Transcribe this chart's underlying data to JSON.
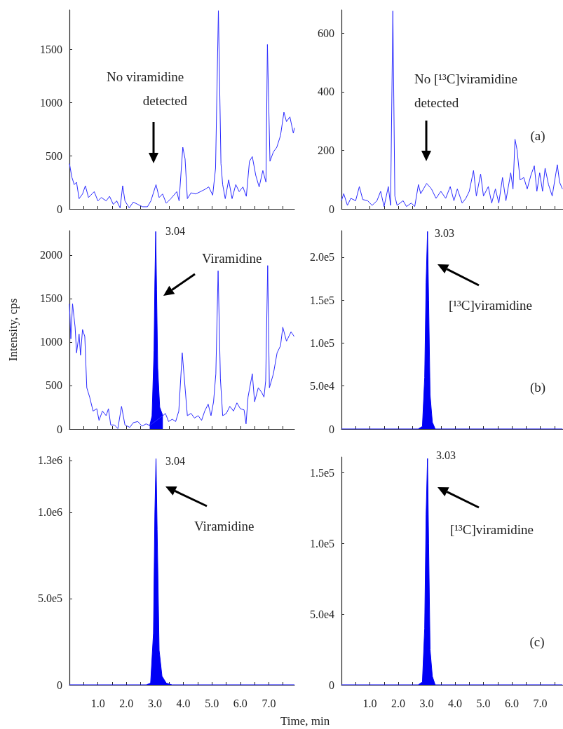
{
  "chart_data": [
    {
      "type": "line",
      "xlim": [
        0,
        7.9
      ],
      "ylim": [
        0,
        1870
      ],
      "tick_labels": "y",
      "grid": false,
      "marker": "none",
      "line_style": "solid",
      "xticks": [
        {
          "value": 0.5,
          "label": null
        },
        {
          "value": 1,
          "label": null
        },
        {
          "value": 1.5,
          "label": null
        },
        {
          "value": 2,
          "label": null
        },
        {
          "value": 2.5,
          "label": null
        },
        {
          "value": 3,
          "label": null
        },
        {
          "value": 3.5,
          "label": null
        },
        {
          "value": 4,
          "label": null
        },
        {
          "value": 4.5,
          "label": null
        },
        {
          "value": 5,
          "label": null
        },
        {
          "value": 5.5,
          "label": null
        },
        {
          "value": 6,
          "label": null
        },
        {
          "value": 6.5,
          "label": null
        },
        {
          "value": 7,
          "label": null
        },
        {
          "value": 7.5,
          "label": null
        }
      ],
      "yticks": [
        0,
        500,
        1000,
        1500
      ],
      "annotations": [
        "No viramidine detected"
      ],
      "series": [
        {
          "color": "#2b2bff",
          "x": [
            0,
            0.09,
            0.17,
            0.25,
            0.34,
            0.46,
            0.56,
            0.67,
            0.87,
            1.0,
            1.12,
            1.29,
            1.41,
            1.54,
            1.66,
            1.78,
            1.87,
            1.95,
            2.1,
            2.24,
            2.4,
            2.57,
            2.74,
            2.86,
            3.04,
            3.15,
            3.27,
            3.4,
            3.56,
            3.77,
            3.85,
            3.98,
            4.06,
            4.14,
            4.27,
            4.43,
            4.6,
            4.76,
            4.89,
            5.03,
            5.13,
            5.23,
            5.32,
            5.38,
            5.47,
            5.59,
            5.71,
            5.84,
            5.96,
            6.09,
            6.21,
            6.32,
            6.42,
            6.54,
            6.66,
            6.79,
            6.9,
            6.95,
            7.04,
            7.16,
            7.28,
            7.41,
            7.53,
            7.62,
            7.74,
            7.86,
            7.9
          ],
          "values": [
            425,
            294,
            228,
            250,
            96,
            140,
            217,
            107,
            162,
            75,
            107,
            75,
            118,
            42,
            75,
            9,
            217,
            75,
            9,
            64,
            42,
            20,
            20,
            75,
            228,
            107,
            140,
            53,
            96,
            162,
            75,
            579,
            469,
            96,
            151,
            140,
            162,
            184,
            206,
            129,
            382,
            1862,
            425,
            228,
            96,
            272,
            96,
            228,
            162,
            206,
            118,
            447,
            491,
            316,
            206,
            360,
            250,
            1544,
            447,
            535,
            579,
            689,
            908,
            820,
            864,
            711,
            760
          ]
        }
      ]
    },
    {
      "type": "line",
      "xlim": [
        0,
        7.8
      ],
      "ylim": [
        0,
        680
      ],
      "tick_labels": "y",
      "grid": false,
      "marker": "none",
      "line_style": "solid",
      "xticks": [
        {
          "value": 0.5,
          "label": null
        },
        {
          "value": 1,
          "label": null
        },
        {
          "value": 1.5,
          "label": null
        },
        {
          "value": 2,
          "label": null
        },
        {
          "value": 2.5,
          "label": null
        },
        {
          "value": 3,
          "label": null
        },
        {
          "value": 3.5,
          "label": null
        },
        {
          "value": 4,
          "label": null
        },
        {
          "value": 4.5,
          "label": null
        },
        {
          "value": 5,
          "label": null
        },
        {
          "value": 5.5,
          "label": null
        },
        {
          "value": 6,
          "label": null
        },
        {
          "value": 6.5,
          "label": null
        },
        {
          "value": 7,
          "label": null
        },
        {
          "value": 7.5,
          "label": null
        }
      ],
      "yticks": [
        0,
        200,
        400,
        600
      ],
      "annotations": [
        "No [¹³C]viramidine detected",
        "(a)"
      ],
      "series": [
        {
          "color": "#2b2bff",
          "x": [
            0,
            0.08,
            0.21,
            0.33,
            0.5,
            0.63,
            0.75,
            0.92,
            1.08,
            1.25,
            1.38,
            1.5,
            1.65,
            1.73,
            1.81,
            1.88,
            1.96,
            2.17,
            2.29,
            2.46,
            2.58,
            2.71,
            2.79,
            3.0,
            3.17,
            3.33,
            3.5,
            3.67,
            3.83,
            3.96,
            4.08,
            4.25,
            4.38,
            4.5,
            4.65,
            4.75,
            4.9,
            5.0,
            5.17,
            5.29,
            5.42,
            5.54,
            5.67,
            5.79,
            5.96,
            6.04,
            6.11,
            6.18,
            6.29,
            6.42,
            6.54,
            6.67,
            6.79,
            6.88,
            6.98,
            7.08,
            7.17,
            7.29,
            7.42,
            7.6,
            7.68,
            7.78
          ],
          "values": [
            28,
            52,
            12,
            36,
            28,
            76,
            32,
            28,
            12,
            28,
            60,
            8,
            76,
            12,
            676,
            44,
            12,
            28,
            8,
            20,
            8,
            83,
            52,
            87,
            68,
            36,
            60,
            36,
            76,
            28,
            68,
            20,
            36,
            60,
            131,
            44,
            119,
            44,
            76,
            20,
            68,
            20,
            107,
            28,
            123,
            68,
            238,
            203,
            99,
            107,
            68,
            115,
            147,
            60,
            123,
            60,
            139,
            83,
            44,
            151,
            91,
            68
          ]
        }
      ]
    },
    {
      "type": "line",
      "xlim": [
        0,
        7.9
      ],
      "ylim": [
        0,
        2280
      ],
      "tick_labels": "y",
      "grid": false,
      "marker": "none",
      "line_style": "solid",
      "ylabel": "Intensity, cps",
      "xticks": [
        {
          "value": 0.5,
          "label": null
        },
        {
          "value": 1,
          "label": null
        },
        {
          "value": 1.5,
          "label": null
        },
        {
          "value": 2,
          "label": null
        },
        {
          "value": 2.5,
          "label": null
        },
        {
          "value": 3,
          "label": null
        },
        {
          "value": 3.5,
          "label": null
        },
        {
          "value": 4,
          "label": null
        },
        {
          "value": 4.5,
          "label": null
        },
        {
          "value": 5,
          "label": null
        },
        {
          "value": 5.5,
          "label": null
        },
        {
          "value": 6,
          "label": null
        },
        {
          "value": 6.5,
          "label": null
        },
        {
          "value": 7,
          "label": null
        },
        {
          "value": 7.5,
          "label": null
        }
      ],
      "yticks": [
        0,
        500,
        1000,
        1500,
        2000
      ],
      "annotations": [
        "3.04",
        "Viramidine"
      ],
      "series": [
        {
          "color": "#2b2bff",
          "x": [
            0,
            0.05,
            0.11,
            0.2,
            0.25,
            0.34,
            0.39,
            0.46,
            0.54,
            0.61,
            0.71,
            0.83,
            0.96,
            1.04,
            1.16,
            1.29,
            1.37,
            1.45,
            1.58,
            1.7,
            1.83,
            1.95,
            2.12,
            2.24,
            2.4,
            2.55,
            2.69,
            2.82,
            3.28,
            3.37,
            3.48,
            3.61,
            3.73,
            3.84,
            3.96,
            4.06,
            4.14,
            4.27,
            4.39,
            4.52,
            4.64,
            4.75,
            4.87,
            4.97,
            5.06,
            5.14,
            5.22,
            5.3,
            5.38,
            5.51,
            5.63,
            5.76,
            5.88,
            6.0,
            6.13,
            6.2,
            6.27,
            6.42,
            6.5,
            6.63,
            6.75,
            6.83,
            6.89,
            6.96,
            7.02,
            7.16,
            7.29,
            7.41,
            7.49,
            7.62,
            7.78,
            7.89
          ],
          "values": [
            1438,
            1036,
            1438,
            1170,
            875,
            1090,
            849,
            1143,
            1063,
            474,
            367,
            206,
            233,
            99,
            206,
            153,
            233,
            46,
            46,
            5,
            260,
            46,
            19,
            72,
            86,
            32,
            59,
            40,
            153,
            179,
            86,
            112,
            86,
            206,
            875,
            474,
            153,
            179,
            126,
            153,
            99,
            206,
            286,
            153,
            313,
            634,
            1818,
            581,
            153,
            179,
            260,
            206,
            300,
            233,
            220,
            59,
            367,
            634,
            313,
            474,
            420,
            367,
            554,
            1879,
            474,
            634,
            875,
            956,
            1170,
            1009,
            1116,
            1063
          ]
        },
        {
          "type": "area",
          "color": "#0000f5",
          "x": [
            2.82,
            2.9,
            2.97,
            3.0,
            3.03,
            3.06,
            3.1,
            3.17,
            3.28
          ],
          "values": [
            40,
            150,
            900,
            1700,
            2270,
            1600,
            700,
            250,
            153
          ]
        }
      ]
    },
    {
      "type": "area",
      "xlim": [
        0,
        7.8
      ],
      "ylim": [
        0,
        231000
      ],
      "tick_labels": "y",
      "grid": false,
      "marker": "none",
      "xticks": [
        {
          "value": 0.5,
          "label": null
        },
        {
          "value": 1,
          "label": null
        },
        {
          "value": 1.5,
          "label": null
        },
        {
          "value": 2,
          "label": null
        },
        {
          "value": 2.5,
          "label": null
        },
        {
          "value": 3,
          "label": null
        },
        {
          "value": 3.5,
          "label": null
        },
        {
          "value": 4,
          "label": null
        },
        {
          "value": 4.5,
          "label": null
        },
        {
          "value": 5,
          "label": null
        },
        {
          "value": 5.5,
          "label": null
        },
        {
          "value": 6,
          "label": null
        },
        {
          "value": 6.5,
          "label": null
        },
        {
          "value": 7,
          "label": null
        },
        {
          "value": 7.5,
          "label": null
        }
      ],
      "yticks": [
        0,
        {
          "value": 50000,
          "label": "5.0e4"
        },
        {
          "value": 100000,
          "label": "1.0e5"
        },
        {
          "value": 150000,
          "label": "1.5e5"
        },
        {
          "value": 200000,
          "label": "2.0e5"
        }
      ],
      "annotations": [
        "3.03",
        "[¹³C]viramidine",
        "(b)"
      ],
      "series": [
        {
          "color": "#0000f5",
          "x": [
            0,
            2.7,
            2.85,
            2.93,
            2.98,
            3.03,
            3.07,
            3.12,
            3.2,
            3.3,
            7.78
          ],
          "values": [
            0,
            0,
            3000,
            60000,
            170000,
            230000,
            150000,
            40000,
            8000,
            0,
            0
          ]
        }
      ]
    },
    {
      "type": "area",
      "xlim": [
        0,
        7.9
      ],
      "ylim": [
        0,
        1320000
      ],
      "grid": false,
      "marker": "none",
      "xticks": [
        {
          "value": 0.5,
          "label": null
        },
        {
          "value": 1,
          "label": "1.0"
        },
        {
          "value": 1.5,
          "label": null
        },
        {
          "value": 2,
          "label": "2.0"
        },
        {
          "value": 2.5,
          "label": null
        },
        {
          "value": 3,
          "label": "3.0"
        },
        {
          "value": 3.5,
          "label": null
        },
        {
          "value": 4,
          "label": "4.0"
        },
        {
          "value": 4.5,
          "label": null
        },
        {
          "value": 5,
          "label": "5.0"
        },
        {
          "value": 5.5,
          "label": null
        },
        {
          "value": 6,
          "label": "6.0"
        },
        {
          "value": 6.5,
          "label": null
        },
        {
          "value": 7,
          "label": "7.0"
        },
        {
          "value": 7.5,
          "label": null
        }
      ],
      "yticks": [
        0,
        {
          "value": 500000,
          "label": "5.0e5"
        },
        {
          "value": 1000000,
          "label": "1.0e6"
        },
        {
          "value": 1300000,
          "label": "1.3e6"
        }
      ],
      "annotations": [
        "3.04",
        "Viramidine"
      ],
      "series": [
        {
          "color": "#0000f5",
          "x": [
            0,
            2.7,
            2.85,
            2.95,
            3.0,
            3.04,
            3.08,
            3.15,
            3.25,
            3.4,
            3.6,
            7.9
          ],
          "values": [
            0,
            0,
            10000,
            300000,
            1000000,
            1310000,
            900000,
            200000,
            50000,
            10000,
            0,
            0
          ]
        }
      ]
    },
    {
      "type": "area",
      "xlim": [
        0,
        7.8
      ],
      "ylim": [
        0,
        161000
      ],
      "grid": false,
      "marker": "none",
      "xlabel": "Time, min",
      "xticks": [
        {
          "value": 0.5,
          "label": null
        },
        {
          "value": 1,
          "label": "1.0"
        },
        {
          "value": 1.5,
          "label": null
        },
        {
          "value": 2,
          "label": "2.0"
        },
        {
          "value": 2.5,
          "label": null
        },
        {
          "value": 3,
          "label": "3.0"
        },
        {
          "value": 3.5,
          "label": null
        },
        {
          "value": 4,
          "label": "4.0"
        },
        {
          "value": 4.5,
          "label": null
        },
        {
          "value": 5,
          "label": "5.0"
        },
        {
          "value": 5.5,
          "label": null
        },
        {
          "value": 6,
          "label": "6.0"
        },
        {
          "value": 6.5,
          "label": null
        },
        {
          "value": 7,
          "label": "7.0"
        },
        {
          "value": 7.5,
          "label": null
        }
      ],
      "yticks": [
        0,
        {
          "value": 50000,
          "label": "5.0e4"
        },
        {
          "value": 100000,
          "label": "1.0e5"
        },
        {
          "value": 150000,
          "label": "1.5e5"
        }
      ],
      "annotations": [
        "3.03",
        "[¹³C]viramidine",
        "(c)"
      ],
      "series": [
        {
          "color": "#0000f5",
          "x": [
            0,
            2.7,
            2.85,
            2.93,
            2.98,
            3.03,
            3.07,
            3.12,
            3.2,
            3.3,
            7.78
          ],
          "values": [
            0,
            0,
            2000,
            40000,
            120000,
            160000,
            100000,
            25000,
            6000,
            0,
            0
          ]
        }
      ]
    }
  ]
}
